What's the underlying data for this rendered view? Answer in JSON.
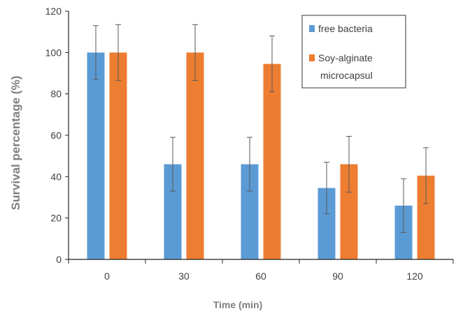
{
  "chart_data": {
    "type": "bar",
    "categories": [
      "0",
      "30",
      "60",
      "90",
      "120"
    ],
    "series": [
      {
        "name": "free bacteria",
        "values": [
          100,
          46,
          46,
          34.5,
          26
        ],
        "errors": [
          13,
          13,
          13,
          12.5,
          13
        ],
        "color": "#5b9bd5"
      },
      {
        "name": "Soy-alginate microcapsul",
        "values": [
          100,
          100,
          94.5,
          46,
          40.5
        ],
        "errors": [
          13.5,
          13.5,
          13.5,
          13.5,
          13.5
        ],
        "color": "#ed7d31"
      }
    ],
    "xlabel": "Time (min)",
    "ylabel": "Survival percentage (%)",
    "ylim": [
      0,
      120
    ],
    "yticks": [
      "0",
      "20",
      "40",
      "60",
      "80",
      "100",
      "120"
    ],
    "legend_position": "top-right",
    "grid": false
  }
}
